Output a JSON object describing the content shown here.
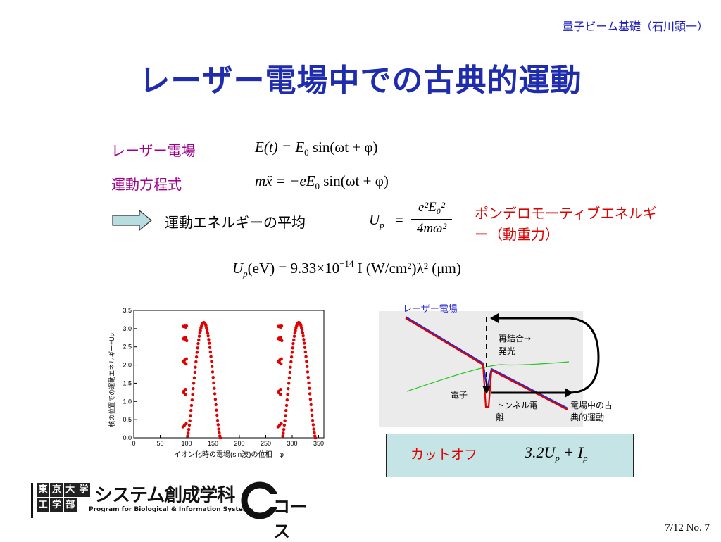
{
  "header": {
    "course": "量子ビーム基礎（石川顕一）",
    "title": "レーザー電場中での古典的運動"
  },
  "rows": {
    "field_label": "レーザー電場",
    "eom_label": "運動方程式",
    "avg_label": "運動エネルギーの平均"
  },
  "equations": {
    "field": {
      "lhs": "E(t) = E",
      "sub0": "0",
      "rhs": " sin(ωt + φ)"
    },
    "eom": {
      "lhs": "mẍ = −eE",
      "sub0": "0",
      "rhs": " sin(ωt + φ)"
    },
    "up": {
      "U": "U",
      "p": "p",
      "eq": "=",
      "num": "e²E₀²",
      "den": "4mω²"
    },
    "numeric": {
      "U": "U",
      "p": "p",
      "text": "(eV) = 9.33×10",
      "exp": "−14",
      "rest": " I (W/cm²)λ² (μm)"
    }
  },
  "ponderomotive": "ポンデロモーティブエネルギー（動重力）",
  "plot": {
    "ylabel": "核の位置での運動エネルギー÷Up",
    "xlabel": "イオン化時の電場(sin波)の位相　φ",
    "yticks": [
      "0.0",
      "0.5",
      "1.0",
      "1.5",
      "2.0",
      "2.5",
      "3.0",
      "3.5"
    ],
    "xticks": [
      "0",
      "50",
      "100",
      "150",
      "200",
      "250",
      "300",
      "350"
    ]
  },
  "chart_data": {
    "type": "scatter",
    "xlabel": "イオン化時の電場(sin波)の位相　φ",
    "ylabel": "核の位置での運動エネルギー÷Up",
    "xlim": [
      0,
      360
    ],
    "ylim": [
      0,
      3.5
    ],
    "series": [
      {
        "color": "#e00000",
        "x": [],
        "y": []
      }
    ]
  },
  "diagram": {
    "laser_field": "レーザー電場",
    "recomb": "再結合→",
    "emission": "発光",
    "electron": "電子",
    "tunnel": "トンネル電",
    "tunnel2": "離",
    "classical": "電場中の古",
    "classical2": "典的運動"
  },
  "cutoff": {
    "label": "カットオフ",
    "formula": "3.2U",
    "p": "p",
    "plus": " + I",
    "p2": "p"
  },
  "logo": {
    "univ": [
      "東",
      "京",
      "大",
      "学"
    ],
    "dept": [
      "工",
      "学",
      "部"
    ],
    "program": "システム創成学科",
    "english": "Program for Biological & Information Systems",
    "course": "コース"
  },
  "page": "7/12   No. 7",
  "colors": {
    "title": "#1f2cae",
    "label": "#a0008c",
    "red": "#e00000",
    "arrow_fill": "#b7dde0"
  }
}
